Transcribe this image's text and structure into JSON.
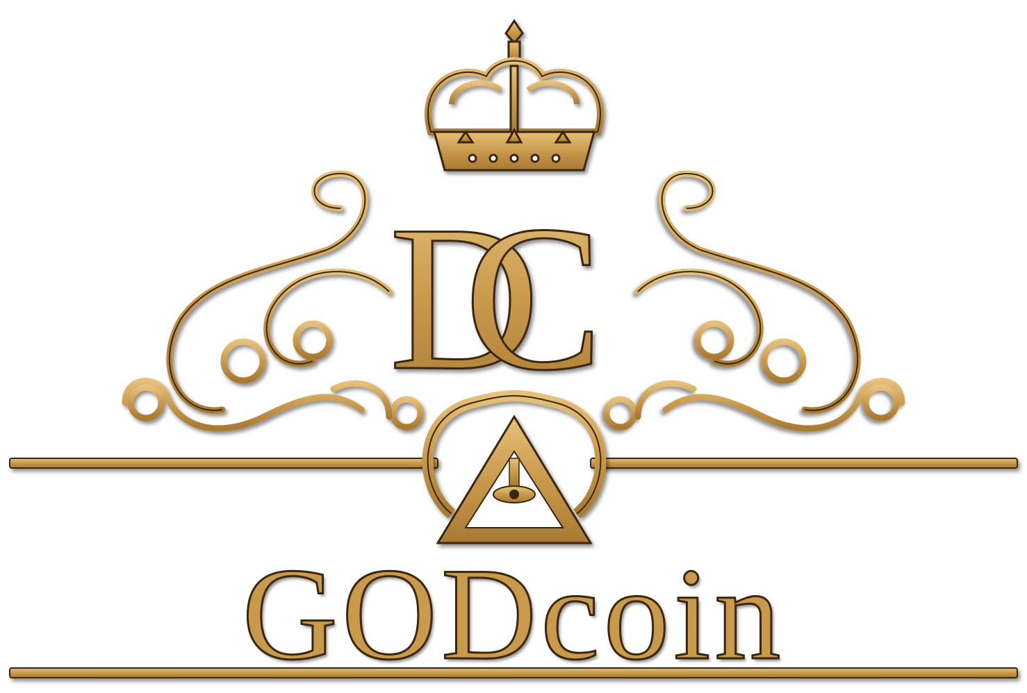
{
  "brand": {
    "name": "GODcoin",
    "monogram": "DC",
    "colors": {
      "gold": "#c99a4c",
      "gold_light": "#e6c17a",
      "outline": "#3a2608",
      "background": "#ffffff"
    }
  },
  "emblem": {
    "crown": "crown-icon",
    "scrolls": "ornamental-scroll-icon",
    "center_symbol": "eye-of-providence-icon"
  }
}
